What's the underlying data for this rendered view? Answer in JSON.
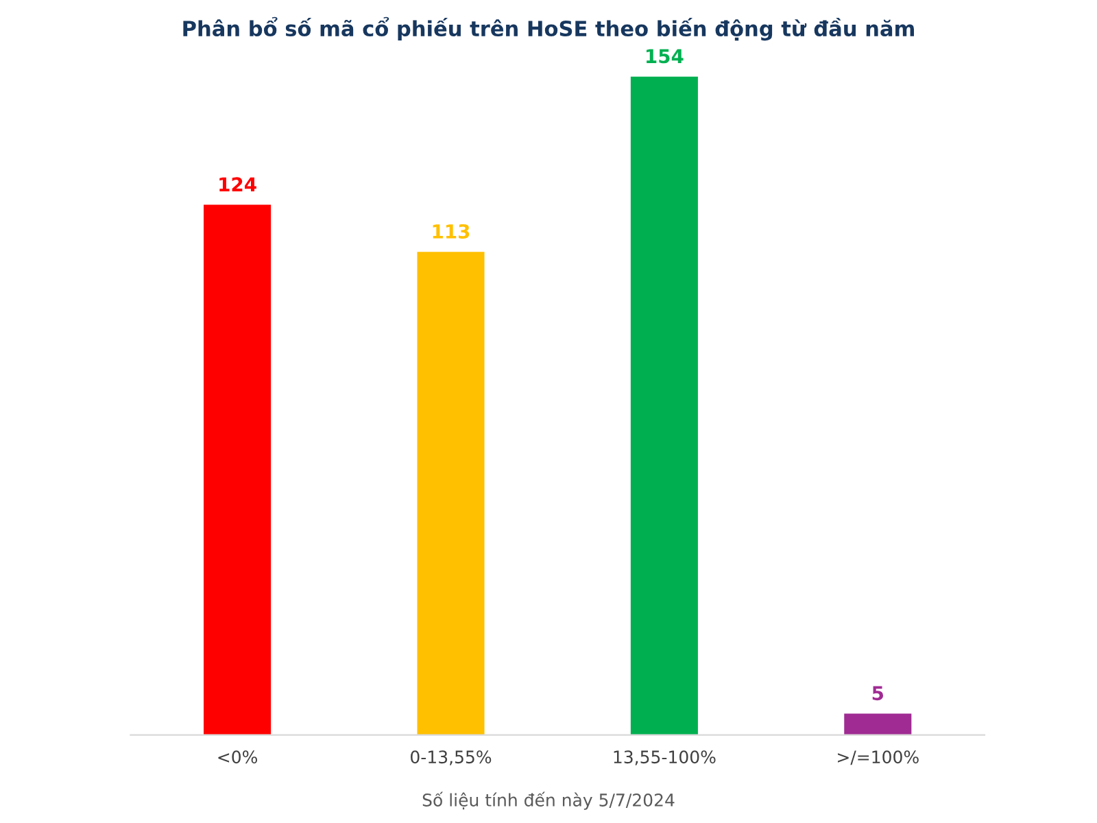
{
  "chart_data": {
    "type": "bar",
    "title": "Phân bổ số mã cổ phiếu trên HoSE theo biến động từ đầu năm",
    "categories": [
      "<0%",
      "0-13,55%",
      "13,55-100%",
      ">/=100%"
    ],
    "values": [
      124,
      113,
      154,
      5
    ],
    "colors": [
      "#ff0000",
      "#ffc000",
      "#00b050",
      "#a02b93"
    ],
    "data_labels": true,
    "annotations": [
      "Số liệu tính đến này 5/7/2024"
    ]
  }
}
